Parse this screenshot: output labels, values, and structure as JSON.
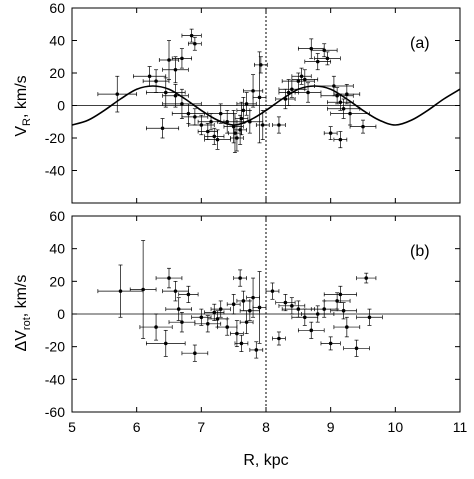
{
  "chart_data": [
    {
      "panel": "(a)",
      "type": "scatter",
      "ylabel_main": "V",
      "ylabel_sub": "R",
      "ylabel_rest": ", km/s",
      "xlim": [
        5,
        11
      ],
      "ylim": [
        -60,
        60
      ],
      "yticks": [
        60,
        40,
        20,
        0,
        -20,
        -40
      ],
      "xticks": [
        5,
        6,
        7,
        8,
        9,
        10,
        11
      ],
      "reference_x": 8,
      "grid": false,
      "curve": {
        "description": "sinusoidal fit",
        "x": [
          5.0,
          5.25,
          5.5,
          5.75,
          6.0,
          6.25,
          6.5,
          6.75,
          7.0,
          7.25,
          7.5,
          7.75,
          8.0,
          8.25,
          8.5,
          8.75,
          9.0,
          9.25,
          9.5,
          9.75,
          10.0,
          10.25,
          10.5,
          10.75,
          11.0
        ],
        "y": [
          -12,
          -9,
          -3,
          4,
          10,
          12,
          10,
          4,
          -3,
          -9,
          -12,
          -9,
          -3,
          4,
          10,
          12,
          10,
          4,
          -3,
          -9,
          -12,
          -9,
          -3,
          4,
          10
        ]
      },
      "points": [
        {
          "x": 5.7,
          "y": 7,
          "xerr": 0.3,
          "yerr": 11
        },
        {
          "x": 6.2,
          "y": 18,
          "xerr": 0.25,
          "yerr": 6
        },
        {
          "x": 6.3,
          "y": 15,
          "xerr": 0.2,
          "yerr": 7
        },
        {
          "x": 6.45,
          "y": 8,
          "xerr": 0.3,
          "yerr": 9
        },
        {
          "x": 6.5,
          "y": 28,
          "xerr": 0.15,
          "yerr": 12
        },
        {
          "x": 6.6,
          "y": 22,
          "xerr": 0.2,
          "yerr": 8
        },
        {
          "x": 6.7,
          "y": 29,
          "xerr": 0.15,
          "yerr": 6
        },
        {
          "x": 6.85,
          "y": 43,
          "xerr": 0.15,
          "yerr": 4
        },
        {
          "x": 6.9,
          "y": 38,
          "xerr": 0.1,
          "yerr": 4
        },
        {
          "x": 6.6,
          "y": 6,
          "xerr": 0.2,
          "yerr": 7
        },
        {
          "x": 6.7,
          "y": 1,
          "xerr": 0.3,
          "yerr": 9
        },
        {
          "x": 6.8,
          "y": -5,
          "xerr": 0.25,
          "yerr": 6
        },
        {
          "x": 6.4,
          "y": -14,
          "xerr": 0.25,
          "yerr": 6
        },
        {
          "x": 6.9,
          "y": -7,
          "xerr": 0.2,
          "yerr": 5
        },
        {
          "x": 7.0,
          "y": -12,
          "xerr": 0.2,
          "yerr": 6
        },
        {
          "x": 7.1,
          "y": -16,
          "xerr": 0.15,
          "yerr": 5
        },
        {
          "x": 7.15,
          "y": -10,
          "xerr": 0.2,
          "yerr": 5
        },
        {
          "x": 7.2,
          "y": -19,
          "xerr": 0.15,
          "yerr": 5
        },
        {
          "x": 7.25,
          "y": -21,
          "xerr": 0.2,
          "yerr": 6
        },
        {
          "x": 7.3,
          "y": -5,
          "xerr": 0.2,
          "yerr": 6
        },
        {
          "x": 7.4,
          "y": -10,
          "xerr": 0.15,
          "yerr": 7
        },
        {
          "x": 7.5,
          "y": -13,
          "xerr": 0.15,
          "yerr": 10
        },
        {
          "x": 7.52,
          "y": -17,
          "xerr": 0.1,
          "yerr": 12
        },
        {
          "x": 7.55,
          "y": -20,
          "xerr": 0.1,
          "yerr": 8
        },
        {
          "x": 7.6,
          "y": -15,
          "xerr": 0.1,
          "yerr": 9
        },
        {
          "x": 7.62,
          "y": -8,
          "xerr": 0.1,
          "yerr": 10
        },
        {
          "x": 7.65,
          "y": -3,
          "xerr": 0.1,
          "yerr": 8
        },
        {
          "x": 7.7,
          "y": 1,
          "xerr": 0.15,
          "yerr": 7
        },
        {
          "x": 7.75,
          "y": -10,
          "xerr": 0.2,
          "yerr": 7
        },
        {
          "x": 7.8,
          "y": 9,
          "xerr": 0.15,
          "yerr": 10
        },
        {
          "x": 7.9,
          "y": 5,
          "xerr": 0.1,
          "yerr": 28
        },
        {
          "x": 7.92,
          "y": 25,
          "xerr": 0.1,
          "yerr": 5
        },
        {
          "x": 7.95,
          "y": -12,
          "xerr": 0.1,
          "yerr": 9
        },
        {
          "x": 8.2,
          "y": -12,
          "xerr": 0.1,
          "yerr": 5
        },
        {
          "x": 8.3,
          "y": 4,
          "xerr": 0.15,
          "yerr": 6
        },
        {
          "x": 8.35,
          "y": 8,
          "xerr": 0.15,
          "yerr": 8
        },
        {
          "x": 8.4,
          "y": 10,
          "xerr": 0.2,
          "yerr": 5
        },
        {
          "x": 8.5,
          "y": 15,
          "xerr": 0.25,
          "yerr": 5
        },
        {
          "x": 8.55,
          "y": 18,
          "xerr": 0.15,
          "yerr": 5
        },
        {
          "x": 8.6,
          "y": 16,
          "xerr": 0.2,
          "yerr": 6
        },
        {
          "x": 8.65,
          "y": 8,
          "xerr": 0.2,
          "yerr": 6
        },
        {
          "x": 8.7,
          "y": 35,
          "xerr": 0.2,
          "yerr": 6
        },
        {
          "x": 8.8,
          "y": 27,
          "xerr": 0.2,
          "yerr": 5
        },
        {
          "x": 8.9,
          "y": 34,
          "xerr": 0.2,
          "yerr": 4
        },
        {
          "x": 8.95,
          "y": 29,
          "xerr": 0.2,
          "yerr": 4
        },
        {
          "x": 9.05,
          "y": 12,
          "xerr": 0.3,
          "yerr": 6
        },
        {
          "x": 9.1,
          "y": 6,
          "xerr": 0.25,
          "yerr": 5
        },
        {
          "x": 9.15,
          "y": 2,
          "xerr": 0.2,
          "yerr": 5
        },
        {
          "x": 9.2,
          "y": -2,
          "xerr": 0.25,
          "yerr": 6
        },
        {
          "x": 9.25,
          "y": 7,
          "xerr": 0.2,
          "yerr": 6
        },
        {
          "x": 9.3,
          "y": -5,
          "xerr": 0.3,
          "yerr": 7
        },
        {
          "x": 9.0,
          "y": -17,
          "xerr": 0.1,
          "yerr": 4
        },
        {
          "x": 9.15,
          "y": -21,
          "xerr": 0.1,
          "yerr": 5
        },
        {
          "x": 9.5,
          "y": -13,
          "xerr": 0.2,
          "yerr": 4
        }
      ]
    },
    {
      "panel": "(b)",
      "type": "scatter",
      "ylabel_main": "ΔV",
      "ylabel_sub": "rot",
      "ylabel_rest": ", km/s",
      "xlabel": "R, kpc",
      "xlim": [
        5,
        11
      ],
      "ylim": [
        -60,
        60
      ],
      "yticks": [
        60,
        40,
        20,
        0,
        -20,
        -40,
        -60
      ],
      "xticks": [
        5,
        6,
        7,
        8,
        9,
        10,
        11
      ],
      "xtick_labels": [
        "5",
        "6",
        "7",
        "8",
        "9",
        "10",
        "11"
      ],
      "reference_x": 8,
      "grid": false,
      "points": [
        {
          "x": 5.75,
          "y": 14,
          "xerr": 0.35,
          "yerr": 16
        },
        {
          "x": 6.1,
          "y": 15,
          "xerr": 0.2,
          "yerr": 30
        },
        {
          "x": 6.3,
          "y": -8,
          "xerr": 0.25,
          "yerr": 8
        },
        {
          "x": 6.45,
          "y": -18,
          "xerr": 0.3,
          "yerr": 8
        },
        {
          "x": 6.5,
          "y": 22,
          "xerr": 0.2,
          "yerr": 6
        },
        {
          "x": 6.6,
          "y": 14,
          "xerr": 0.2,
          "yerr": 6
        },
        {
          "x": 6.65,
          "y": 3,
          "xerr": 0.2,
          "yerr": 7
        },
        {
          "x": 6.7,
          "y": -5,
          "xerr": 0.2,
          "yerr": 6
        },
        {
          "x": 6.8,
          "y": 12,
          "xerr": 0.15,
          "yerr": 5
        },
        {
          "x": 6.9,
          "y": -24,
          "xerr": 0.2,
          "yerr": 5
        },
        {
          "x": 7.0,
          "y": -2,
          "xerr": 0.15,
          "yerr": 5
        },
        {
          "x": 7.1,
          "y": -6,
          "xerr": 0.2,
          "yerr": 5
        },
        {
          "x": 7.2,
          "y": 1,
          "xerr": 0.15,
          "yerr": 5
        },
        {
          "x": 7.25,
          "y": -3,
          "xerr": 0.15,
          "yerr": 5
        },
        {
          "x": 7.3,
          "y": 3,
          "xerr": 0.15,
          "yerr": 5
        },
        {
          "x": 7.4,
          "y": -8,
          "xerr": 0.15,
          "yerr": 5
        },
        {
          "x": 7.5,
          "y": 6,
          "xerr": 0.1,
          "yerr": 6
        },
        {
          "x": 7.55,
          "y": -12,
          "xerr": 0.1,
          "yerr": 8
        },
        {
          "x": 7.6,
          "y": 22,
          "xerr": 0.1,
          "yerr": 5
        },
        {
          "x": 7.62,
          "y": -18,
          "xerr": 0.1,
          "yerr": 5
        },
        {
          "x": 7.65,
          "y": 8,
          "xerr": 0.1,
          "yerr": 6
        },
        {
          "x": 7.7,
          "y": -5,
          "xerr": 0.1,
          "yerr": 7
        },
        {
          "x": 7.75,
          "y": 2,
          "xerr": 0.15,
          "yerr": 6
        },
        {
          "x": 7.8,
          "y": 10,
          "xerr": 0.1,
          "yerr": 12
        },
        {
          "x": 7.85,
          "y": -22,
          "xerr": 0.1,
          "yerr": 5
        },
        {
          "x": 7.9,
          "y": 4,
          "xerr": 0.1,
          "yerr": 22
        },
        {
          "x": 8.1,
          "y": 14,
          "xerr": 0.1,
          "yerr": 5
        },
        {
          "x": 8.2,
          "y": -15,
          "xerr": 0.1,
          "yerr": 4
        },
        {
          "x": 8.3,
          "y": 7,
          "xerr": 0.15,
          "yerr": 5
        },
        {
          "x": 8.4,
          "y": 5,
          "xerr": 0.2,
          "yerr": 5
        },
        {
          "x": 8.5,
          "y": 3,
          "xerr": 0.25,
          "yerr": 5
        },
        {
          "x": 8.6,
          "y": -2,
          "xerr": 0.2,
          "yerr": 5
        },
        {
          "x": 8.7,
          "y": -10,
          "xerr": 0.2,
          "yerr": 5
        },
        {
          "x": 8.8,
          "y": 0,
          "xerr": 0.25,
          "yerr": 5
        },
        {
          "x": 8.9,
          "y": 3,
          "xerr": 0.2,
          "yerr": 5
        },
        {
          "x": 9.0,
          "y": -18,
          "xerr": 0.15,
          "yerr": 4
        },
        {
          "x": 9.1,
          "y": 8,
          "xerr": 0.2,
          "yerr": 5
        },
        {
          "x": 9.15,
          "y": 12,
          "xerr": 0.25,
          "yerr": 5
        },
        {
          "x": 9.2,
          "y": 2,
          "xerr": 0.2,
          "yerr": 5
        },
        {
          "x": 9.25,
          "y": -8,
          "xerr": 0.2,
          "yerr": 6
        },
        {
          "x": 9.4,
          "y": -21,
          "xerr": 0.2,
          "yerr": 5
        },
        {
          "x": 9.55,
          "y": 22,
          "xerr": 0.15,
          "yerr": 3
        },
        {
          "x": 9.6,
          "y": -2,
          "xerr": 0.2,
          "yerr": 5
        }
      ]
    }
  ]
}
